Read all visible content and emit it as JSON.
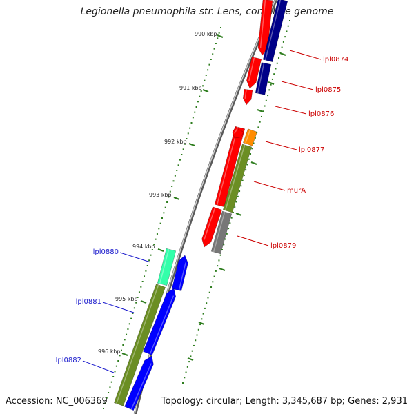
{
  "title": "Legionella pneumophila str. Lens, complete genome",
  "footer": {
    "accession": "Accession: NC_006369",
    "summary": "Topology: circular; Length: 3,345,687 bp; Genes: 2,931"
  },
  "colors": {
    "backbone": "#8c8c8c",
    "tick": "#2e7d1e",
    "forward_strand_label": "#cc0000",
    "reverse_strand_label": "#1a1acc",
    "red_feature": "#ff0000",
    "navy_feature": "#000088",
    "orange_feature": "#ff8c00",
    "olive_feature": "#6b8e23",
    "gray_feature": "#777777",
    "aqua_feature": "#33ffaa",
    "blue_feature": "#0000ff"
  },
  "ruler": {
    "unit": "kbp",
    "labels": [
      "990 kbp",
      "991 kbp",
      "992 kbp",
      "993 kbp",
      "994 kbp",
      "995 kbp",
      "996 kbp"
    ]
  },
  "genes": [
    {
      "name": "lpl0874",
      "strand": "forward"
    },
    {
      "name": "lpl0875",
      "strand": "forward"
    },
    {
      "name": "lpl0876",
      "strand": "forward"
    },
    {
      "name": "lpl0877",
      "strand": "forward"
    },
    {
      "name": "murA",
      "strand": "forward"
    },
    {
      "name": "lpl0879",
      "strand": "forward"
    },
    {
      "name": "lpl0880",
      "strand": "reverse"
    },
    {
      "name": "lpl0881",
      "strand": "reverse"
    },
    {
      "name": "lpl0882",
      "strand": "reverse"
    }
  ]
}
